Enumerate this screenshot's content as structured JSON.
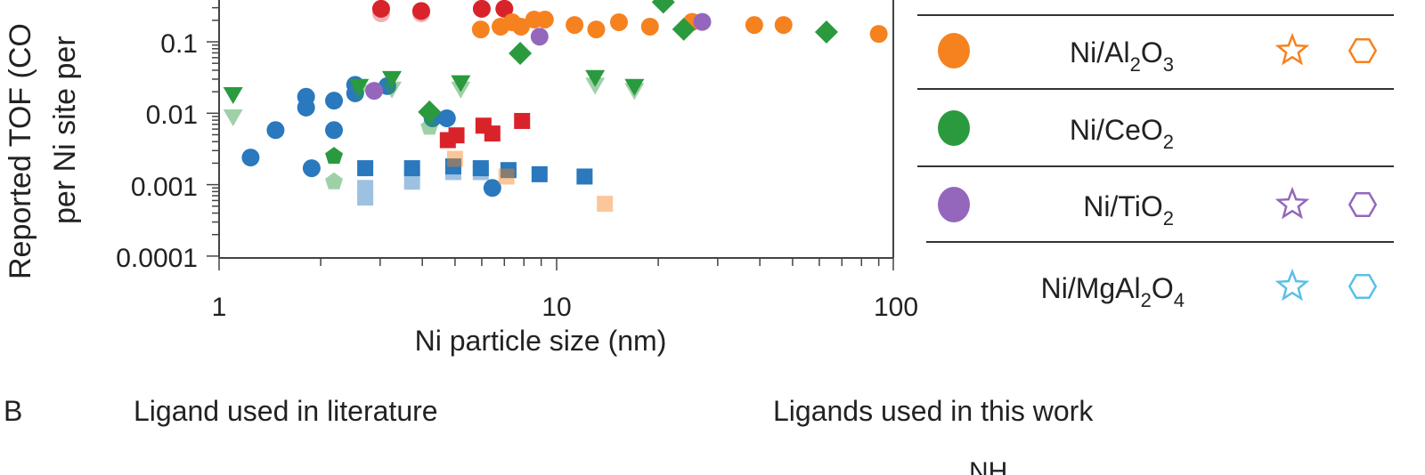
{
  "chart_data": {
    "type": "scatter",
    "xlabel": "Ni particle size (nm)",
    "ylabel_lines": [
      "Reported TOF (CO",
      "per Ni site per"
    ],
    "x_scale": "log",
    "y_scale": "log",
    "xlim": [
      1,
      100
    ],
    "ylim": [
      0.0001,
      0.5
    ],
    "x_ticks": [
      "1",
      "10",
      "100"
    ],
    "y_ticks": [
      "0.1",
      "0.01",
      "0.001",
      "0.0001"
    ],
    "grid": false,
    "legend_position": "right",
    "series": [
      {
        "marker": "circle",
        "color": "#2a78bd",
        "opacity": 1,
        "points": [
          [
            1.24,
            0.0024
          ],
          [
            1.47,
            0.0058
          ],
          [
            1.81,
            0.017
          ],
          [
            1.81,
            0.012
          ],
          [
            2.19,
            0.015
          ],
          [
            2.19,
            0.0058
          ],
          [
            1.88,
            0.0017
          ],
          [
            2.53,
            0.025
          ],
          [
            2.53,
            0.019
          ],
          [
            3.15,
            0.024
          ],
          [
            4.29,
            0.0085
          ],
          [
            4.73,
            0.0085
          ],
          [
            6.45,
            0.0009
          ]
        ]
      },
      {
        "marker": "square",
        "color": "#2a78bd",
        "opacity": 1,
        "points": [
          [
            2.71,
            0.0017
          ],
          [
            3.73,
            0.0017
          ],
          [
            4.94,
            0.0018
          ],
          [
            5.96,
            0.0017
          ],
          [
            7.2,
            0.0016
          ],
          [
            8.9,
            0.0014
          ],
          [
            12.1,
            0.0013
          ]
        ]
      },
      {
        "marker": "square",
        "color": "#2a78bd",
        "opacity": 0.45,
        "points": [
          [
            2.71,
            0.0009
          ],
          [
            2.71,
            0.00066
          ],
          [
            3.73,
            0.0011
          ],
          [
            4.94,
            0.0015
          ],
          [
            5.96,
            0.0015
          ]
        ]
      },
      {
        "marker": "circle",
        "color": "#d9232a",
        "opacity": 0.35,
        "points": [
          [
            3.02,
            0.25
          ],
          [
            3.97,
            0.25
          ]
        ]
      },
      {
        "marker": "circle",
        "color": "#d9232a",
        "opacity": 1,
        "points": [
          [
            3.02,
            0.29
          ],
          [
            3.97,
            0.27
          ],
          [
            6.0,
            0.29
          ],
          [
            7.0,
            0.29
          ]
        ]
      },
      {
        "marker": "square",
        "color": "#d9232a",
        "opacity": 1,
        "points": [
          [
            4.76,
            0.0042
          ],
          [
            5.05,
            0.0049
          ],
          [
            6.07,
            0.0067
          ],
          [
            6.45,
            0.0052
          ],
          [
            7.9,
            0.0078
          ]
        ]
      },
      {
        "name": "Ni/Al2O3",
        "marker": "circle",
        "color": "#f5821f",
        "opacity": 1,
        "points": [
          [
            5.96,
            0.149
          ],
          [
            6.82,
            0.163
          ],
          [
            7.38,
            0.188
          ],
          [
            7.84,
            0.163
          ],
          [
            8.58,
            0.205
          ],
          [
            9.23,
            0.205
          ],
          [
            11.3,
            0.172
          ],
          [
            13.1,
            0.149
          ],
          [
            15.3,
            0.188
          ],
          [
            18.9,
            0.163
          ],
          [
            25.2,
            0.19
          ],
          [
            38.5,
            0.172
          ],
          [
            47,
            0.172
          ],
          [
            90,
            0.129
          ]
        ]
      },
      {
        "marker": "square",
        "color": "#f5821f",
        "opacity": 0.45,
        "points": [
          [
            5.0,
            0.0023
          ],
          [
            7.1,
            0.0013
          ],
          [
            13.9,
            0.00054
          ]
        ]
      },
      {
        "name": "Ni/CeO2",
        "marker": "diamond",
        "color": "#2b9a3e",
        "opacity": 1,
        "points": [
          [
            7.8,
            0.069
          ],
          [
            4.2,
            0.0104
          ],
          [
            20.7,
            0.36
          ],
          [
            23.8,
            0.15
          ],
          [
            63,
            0.137
          ]
        ]
      },
      {
        "marker": "triangle-down",
        "color": "#2b9a3e",
        "opacity": 1,
        "points": [
          [
            1.1,
            0.0184
          ],
          [
            2.6,
            0.024
          ],
          [
            3.25,
            0.031
          ],
          [
            5.2,
            0.027
          ],
          [
            13,
            0.032
          ],
          [
            17,
            0.024
          ]
        ]
      },
      {
        "marker": "triangle-down",
        "color": "#2b9a3e",
        "opacity": 0.45,
        "points": [
          [
            1.1,
            0.009
          ],
          [
            2.6,
            0.02
          ],
          [
            3.25,
            0.022
          ],
          [
            5.2,
            0.022
          ],
          [
            13,
            0.025
          ],
          [
            17,
            0.021
          ]
        ]
      },
      {
        "marker": "pentagon",
        "color": "#2b9a3e",
        "opacity": 1,
        "points": [
          [
            2.19,
            0.0025
          ]
        ]
      },
      {
        "marker": "pentagon",
        "color": "#2b9a3e",
        "opacity": 0.45,
        "points": [
          [
            2.19,
            0.0011
          ],
          [
            4.2,
            0.0064
          ]
        ]
      },
      {
        "name": "Ni/TiO2",
        "marker": "circle",
        "color": "#9467bd",
        "opacity": 1,
        "points": [
          [
            2.88,
            0.0206
          ],
          [
            8.9,
            0.118
          ],
          [
            27,
            0.19
          ]
        ]
      }
    ],
    "legend": [
      {
        "label": "Ni/Al",
        "sub1": "2",
        "mid": "O",
        "sub2": "3",
        "color": "#f5821f",
        "star": true,
        "hexagon": true
      },
      {
        "label": "Ni/CeO",
        "sub1": "2",
        "mid": "",
        "sub2": "",
        "color": "#2b9a3e",
        "star": false,
        "hexagon": false
      },
      {
        "label": "Ni/TiO",
        "sub1": "2",
        "mid": "",
        "sub2": "",
        "color": "#9467bd",
        "star": true,
        "hexagon": true
      },
      {
        "label": "Ni/MgAl",
        "sub1": "2",
        "mid": "O",
        "sub2": "4",
        "color": "#5bbfe8",
        "star": true,
        "hexagon": true,
        "no_dot": true
      }
    ]
  },
  "panel_b": {
    "letter": "B",
    "left_title": "Ligand used in literature",
    "right_title": "Ligands used in this work",
    "fragment": "NH"
  }
}
